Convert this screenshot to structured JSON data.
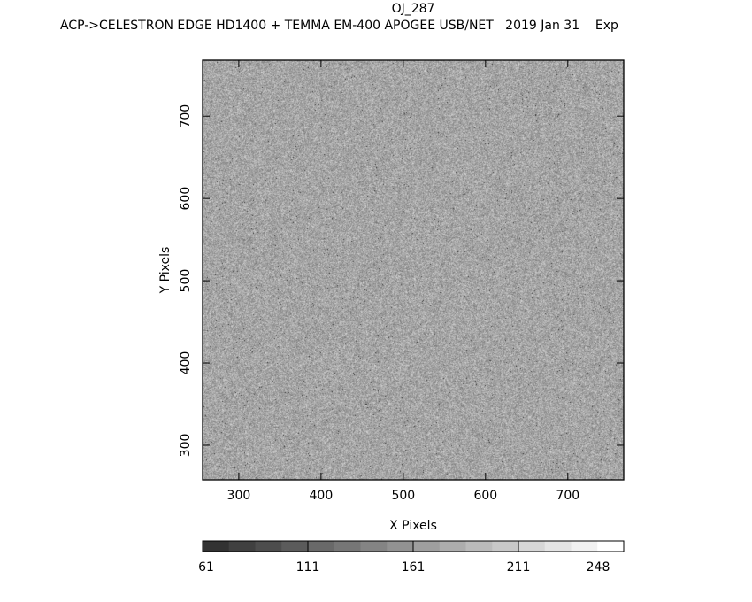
{
  "chart_data": {
    "type": "heatmap",
    "title": "OJ_287",
    "subtitle": "ACP->CELESTRON EDGE HD1400 + TEMMA EM-400 APOGEE USB/NET   2019 Jan 31    Exp",
    "xlabel": "X Pixels",
    "ylabel": "Y Pixels",
    "xlim": [
      256,
      768
    ],
    "ylim": [
      258,
      768
    ],
    "xticks": [
      "300",
      "400",
      "500",
      "600",
      "700"
    ],
    "yticks": [
      "300",
      "400",
      "500",
      "600",
      "700"
    ],
    "colormap": "grayscale",
    "colorbar": {
      "min": 61,
      "max": 248,
      "levels": 16,
      "tick_labels": [
        "61",
        "111",
        "161",
        "211",
        "248"
      ]
    },
    "image_mean_value": 165
  }
}
